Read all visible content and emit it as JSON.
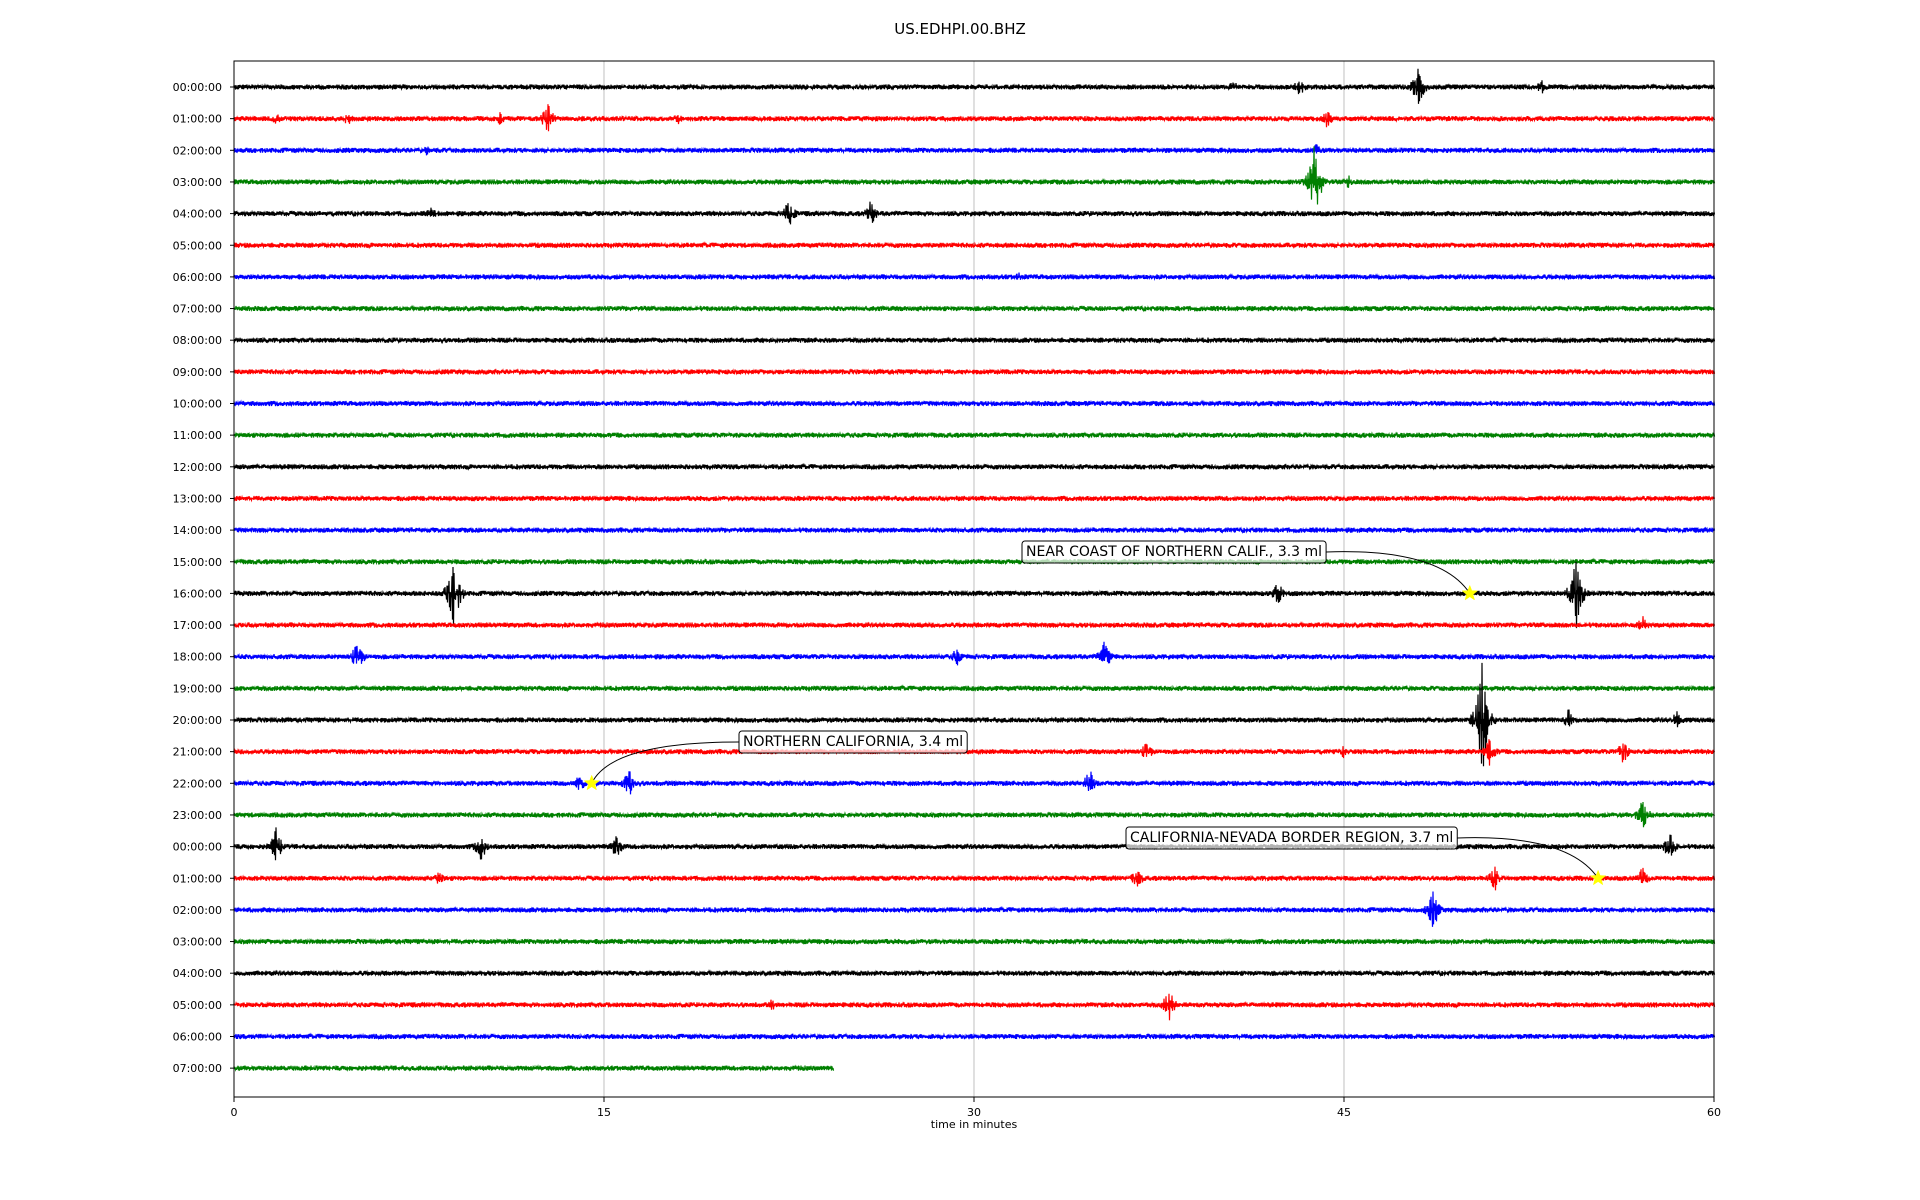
{
  "chart_data": {
    "type": "line",
    "title": "US.EDHPI.00.BHZ",
    "xlabel": "time in minutes",
    "xlim": [
      0,
      60
    ],
    "xticks": [
      "0",
      "15",
      "30",
      "45",
      "60"
    ],
    "grid": "vertical at x ticks",
    "colors": [
      "#000000",
      "#ff0000",
      "#0000ff",
      "#008000"
    ],
    "row_labels": [
      "00:00:00",
      "01:00:00",
      "02:00:00",
      "03:00:00",
      "04:00:00",
      "05:00:00",
      "06:00:00",
      "07:00:00",
      "08:00:00",
      "09:00:00",
      "10:00:00",
      "11:00:00",
      "12:00:00",
      "13:00:00",
      "14:00:00",
      "15:00:00",
      "16:00:00",
      "17:00:00",
      "18:00:00",
      "19:00:00",
      "20:00:00",
      "21:00:00",
      "22:00:00",
      "23:00:00",
      "00:00:00",
      "01:00:00",
      "02:00:00",
      "03:00:00",
      "04:00:00",
      "05:00:00",
      "06:00:00",
      "07:00:00"
    ],
    "last_row_end_minute": 24.3,
    "events": [
      {
        "label": "NEAR COAST OF NORTHERN CALIF., 3.3 ml",
        "row": 16,
        "minute": 50.1
      },
      {
        "label": "NORTHERN CALIFORNIA, 3.4 ml",
        "row": 22,
        "minute": 14.5
      },
      {
        "label": "CALIFORNIA-NEVADA BORDER REGION, 3.7 ml",
        "row": 25,
        "minute": 55.3
      }
    ],
    "bursts": [
      {
        "row": 0,
        "minute": 40.5,
        "amp": 8
      },
      {
        "row": 0,
        "minute": 43.2,
        "amp": 10
      },
      {
        "row": 0,
        "minute": 48.0,
        "amp": 22
      },
      {
        "row": 0,
        "minute": 53.0,
        "amp": 8
      },
      {
        "row": 1,
        "minute": 1.7,
        "amp": 7
      },
      {
        "row": 1,
        "minute": 4.6,
        "amp": 8
      },
      {
        "row": 1,
        "minute": 10.8,
        "amp": 8
      },
      {
        "row": 1,
        "minute": 12.7,
        "amp": 18
      },
      {
        "row": 1,
        "minute": 18.0,
        "amp": 6
      },
      {
        "row": 1,
        "minute": 44.3,
        "amp": 10
      },
      {
        "row": 2,
        "minute": 7.8,
        "amp": 6
      },
      {
        "row": 2,
        "minute": 43.9,
        "amp": 8
      },
      {
        "row": 3,
        "minute": 43.8,
        "amp": 42
      },
      {
        "row": 3,
        "minute": 45.2,
        "amp": 10
      },
      {
        "row": 4,
        "minute": 8.0,
        "amp": 7
      },
      {
        "row": 4,
        "minute": 22.5,
        "amp": 16
      },
      {
        "row": 4,
        "minute": 25.8,
        "amp": 14
      },
      {
        "row": 6,
        "minute": 31.8,
        "amp": 6
      },
      {
        "row": 15,
        "minute": 0.0,
        "amp": 0
      },
      {
        "row": 16,
        "minute": 8.9,
        "amp": 38
      },
      {
        "row": 16,
        "minute": 42.3,
        "amp": 14
      },
      {
        "row": 16,
        "minute": 54.4,
        "amp": 38
      },
      {
        "row": 17,
        "minute": 57.1,
        "amp": 10
      },
      {
        "row": 18,
        "minute": 5.0,
        "amp": 18
      },
      {
        "row": 18,
        "minute": 29.3,
        "amp": 10
      },
      {
        "row": 18,
        "minute": 35.3,
        "amp": 18
      },
      {
        "row": 20,
        "minute": 50.6,
        "amp": 60
      },
      {
        "row": 20,
        "minute": 54.1,
        "amp": 12
      },
      {
        "row": 20,
        "minute": 58.5,
        "amp": 10
      },
      {
        "row": 21,
        "minute": 37.0,
        "amp": 12
      },
      {
        "row": 21,
        "minute": 45.0,
        "amp": 8
      },
      {
        "row": 21,
        "minute": 50.9,
        "amp": 18
      },
      {
        "row": 21,
        "minute": 56.3,
        "amp": 14
      },
      {
        "row": 22,
        "minute": 14.0,
        "amp": 10
      },
      {
        "row": 22,
        "minute": 16.0,
        "amp": 16
      },
      {
        "row": 22,
        "minute": 34.7,
        "amp": 16
      },
      {
        "row": 23,
        "minute": 57.1,
        "amp": 18
      },
      {
        "row": 24,
        "minute": 1.7,
        "amp": 20
      },
      {
        "row": 24,
        "minute": 10.0,
        "amp": 16
      },
      {
        "row": 24,
        "minute": 15.5,
        "amp": 14
      },
      {
        "row": 24,
        "minute": 58.2,
        "amp": 18
      },
      {
        "row": 25,
        "minute": 8.3,
        "amp": 10
      },
      {
        "row": 25,
        "minute": 36.6,
        "amp": 12
      },
      {
        "row": 25,
        "minute": 51.1,
        "amp": 14
      },
      {
        "row": 25,
        "minute": 57.1,
        "amp": 12
      },
      {
        "row": 26,
        "minute": 48.6,
        "amp": 22
      },
      {
        "row": 29,
        "minute": 21.8,
        "amp": 6
      },
      {
        "row": 29,
        "minute": 37.9,
        "amp": 18
      }
    ]
  }
}
